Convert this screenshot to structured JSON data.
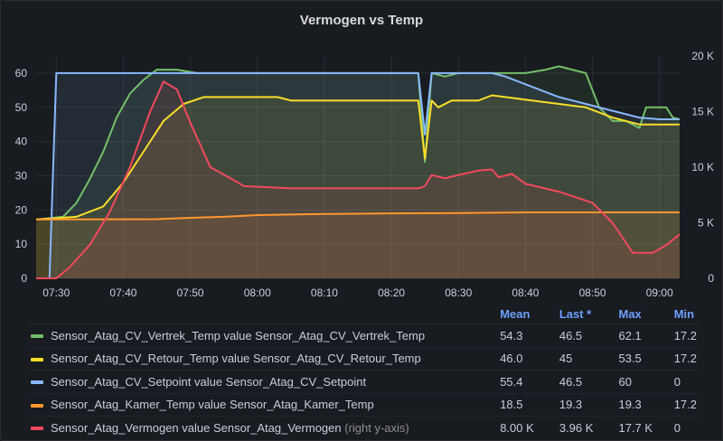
{
  "panel": {
    "title": "Vermogen vs Temp"
  },
  "chart_data": {
    "type": "line",
    "title": "Vermogen vs Temp",
    "x_ticks": [
      "07:30",
      "07:40",
      "07:50",
      "08:00",
      "08:10",
      "08:20",
      "08:30",
      "08:40",
      "08:50",
      "09:00"
    ],
    "x_range": [
      "07:27",
      "09:03"
    ],
    "y_left": {
      "range": [
        0,
        65
      ],
      "ticks": [
        "0",
        "10",
        "20",
        "30",
        "40",
        "50",
        "60"
      ]
    },
    "y_right": {
      "range": [
        0,
        20000
      ],
      "ticks": [
        "0",
        "5 K",
        "10 K",
        "15 K",
        "20 K"
      ]
    },
    "grid": true,
    "series": [
      {
        "name": "Sensor_Atag_CV_Vertrek_Temp value Sensor_Atag_CV_Vertrek_Temp",
        "color": "#73bf69",
        "axis": "left",
        "points": [
          [
            "07:27",
            17.2
          ],
          [
            "07:31",
            18
          ],
          [
            "07:33",
            22
          ],
          [
            "07:35",
            29
          ],
          [
            "07:37",
            37
          ],
          [
            "07:39",
            47
          ],
          [
            "07:41",
            54
          ],
          [
            "07:43",
            58
          ],
          [
            "07:45",
            61
          ],
          [
            "07:48",
            61
          ],
          [
            "07:51",
            60
          ],
          [
            "08:00",
            60
          ],
          [
            "08:10",
            60
          ],
          [
            "08:20",
            60
          ],
          [
            "08:24",
            60
          ],
          [
            "08:25",
            34
          ],
          [
            "08:26",
            60
          ],
          [
            "08:28",
            59
          ],
          [
            "08:30",
            60
          ],
          [
            "08:35",
            60
          ],
          [
            "08:40",
            60
          ],
          [
            "08:43",
            61
          ],
          [
            "08:45",
            62
          ],
          [
            "08:47",
            61
          ],
          [
            "08:49",
            60
          ],
          [
            "08:51",
            50
          ],
          [
            "08:53",
            46
          ],
          [
            "08:55",
            46
          ],
          [
            "08:57",
            44
          ],
          [
            "08:58",
            50
          ],
          [
            "09:00",
            50
          ],
          [
            "09:01",
            50
          ],
          [
            "09:02",
            47
          ],
          [
            "09:03",
            46.5
          ]
        ]
      },
      {
        "name": "Sensor_Atag_CV_Retour_Temp value Sensor_Atag_CV_Retour_Temp",
        "color": "#fade2a",
        "axis": "left",
        "points": [
          [
            "07:27",
            17.2
          ],
          [
            "07:33",
            18
          ],
          [
            "07:37",
            21
          ],
          [
            "07:40",
            28
          ],
          [
            "07:43",
            37
          ],
          [
            "07:46",
            46
          ],
          [
            "07:49",
            51
          ],
          [
            "07:52",
            53
          ],
          [
            "08:00",
            53
          ],
          [
            "08:03",
            53
          ],
          [
            "08:05",
            52
          ],
          [
            "08:15",
            52
          ],
          [
            "08:24",
            52
          ],
          [
            "08:25",
            35
          ],
          [
            "08:26",
            52
          ],
          [
            "08:27",
            50
          ],
          [
            "08:29",
            52
          ],
          [
            "08:33",
            52
          ],
          [
            "08:35",
            53.5
          ],
          [
            "08:37",
            53
          ],
          [
            "08:41",
            52
          ],
          [
            "08:45",
            51
          ],
          [
            "08:49",
            50
          ],
          [
            "08:53",
            47
          ],
          [
            "08:57",
            45
          ],
          [
            "09:01",
            45
          ],
          [
            "09:03",
            45
          ]
        ]
      },
      {
        "name": "Sensor_Atag_CV_Setpoint value Sensor_Atag_CV_Setpoint",
        "color": "#8ab8ff",
        "axis": "left",
        "points": [
          [
            "07:27",
            0
          ],
          [
            "07:29",
            0
          ],
          [
            "07:30",
            60
          ],
          [
            "07:40",
            60
          ],
          [
            "08:00",
            60
          ],
          [
            "08:20",
            60
          ],
          [
            "08:24",
            60
          ],
          [
            "08:25",
            42
          ],
          [
            "08:26",
            60
          ],
          [
            "08:30",
            60
          ],
          [
            "08:35",
            60
          ],
          [
            "08:37",
            59
          ],
          [
            "08:41",
            56
          ],
          [
            "08:45",
            53
          ],
          [
            "08:49",
            51
          ],
          [
            "08:53",
            49
          ],
          [
            "08:57",
            47
          ],
          [
            "09:00",
            46.5
          ],
          [
            "09:03",
            46.5
          ]
        ]
      },
      {
        "name": "Sensor_Atag_Kamer_Temp value Sensor_Atag_Kamer_Temp",
        "color": "#ff9830",
        "axis": "left",
        "points": [
          [
            "07:27",
            17.2
          ],
          [
            "07:45",
            17.3
          ],
          [
            "07:50",
            17.7
          ],
          [
            "07:55",
            18
          ],
          [
            "08:00",
            18.5
          ],
          [
            "08:10",
            18.8
          ],
          [
            "08:20",
            19
          ],
          [
            "08:30",
            19.1
          ],
          [
            "08:40",
            19.3
          ],
          [
            "09:03",
            19.3
          ]
        ]
      },
      {
        "name": "Sensor_Atag_Vermogen value Sensor_Atag_Vermogen",
        "axis_note": "(right y-axis)",
        "color": "#f2495c",
        "axis": "right",
        "points": [
          [
            "07:27",
            0
          ],
          [
            "07:30",
            0
          ],
          [
            "07:32",
            1000
          ],
          [
            "07:35",
            3000
          ],
          [
            "07:38",
            6000
          ],
          [
            "07:41",
            10000
          ],
          [
            "07:44",
            15000
          ],
          [
            "07:46",
            17700
          ],
          [
            "07:48",
            17000
          ],
          [
            "07:50",
            14000
          ],
          [
            "07:53",
            10000
          ],
          [
            "07:56",
            9000
          ],
          [
            "07:58",
            8300
          ],
          [
            "08:05",
            8100
          ],
          [
            "08:15",
            8100
          ],
          [
            "08:24",
            8100
          ],
          [
            "08:25",
            8300
          ],
          [
            "08:26",
            9300
          ],
          [
            "08:28",
            9000
          ],
          [
            "08:30",
            9300
          ],
          [
            "08:33",
            9700
          ],
          [
            "08:35",
            9800
          ],
          [
            "08:36",
            9100
          ],
          [
            "08:38",
            9400
          ],
          [
            "08:40",
            8500
          ],
          [
            "08:45",
            7800
          ],
          [
            "08:50",
            6800
          ],
          [
            "08:53",
            5000
          ],
          [
            "08:56",
            2300
          ],
          [
            "08:59",
            2300
          ],
          [
            "09:01",
            3000
          ],
          [
            "09:03",
            3960
          ]
        ]
      }
    ],
    "legend": {
      "headers": [
        "Mean",
        "Last *",
        "Max",
        "Min"
      ],
      "rows": [
        {
          "label": "Sensor_Atag_CV_Vertrek_Temp value Sensor_Atag_CV_Vertrek_Temp",
          "note": "",
          "color": "#73bf69",
          "mean": "54.3",
          "last": "46.5",
          "max": "62.1",
          "min": "17.2"
        },
        {
          "label": "Sensor_Atag_CV_Retour_Temp value Sensor_Atag_CV_Retour_Temp",
          "note": "",
          "color": "#fade2a",
          "mean": "46.0",
          "last": "45",
          "max": "53.5",
          "min": "17.2"
        },
        {
          "label": "Sensor_Atag_CV_Setpoint value Sensor_Atag_CV_Setpoint",
          "note": "",
          "color": "#8ab8ff",
          "mean": "55.4",
          "last": "46.5",
          "max": "60",
          "min": "0"
        },
        {
          "label": "Sensor_Atag_Kamer_Temp value Sensor_Atag_Kamer_Temp",
          "note": "",
          "color": "#ff9830",
          "mean": "18.5",
          "last": "19.3",
          "max": "19.3",
          "min": "17.2"
        },
        {
          "label": "Sensor_Atag_Vermogen value Sensor_Atag_Vermogen",
          "note": "(right y-axis)",
          "color": "#f2495c",
          "mean": "8.00 K",
          "last": "3.96 K",
          "max": "17.7 K",
          "min": "0"
        }
      ]
    }
  }
}
